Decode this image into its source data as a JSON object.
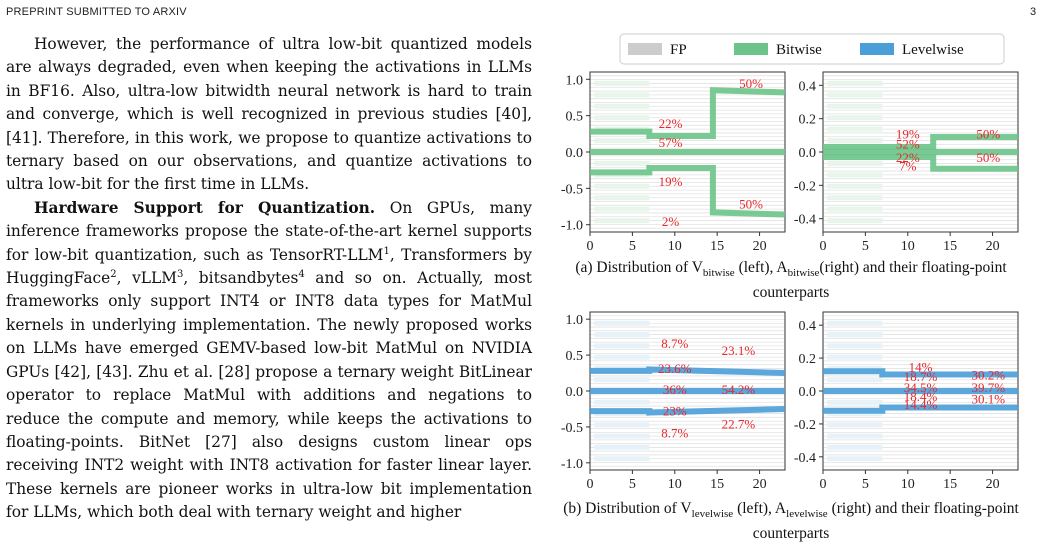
{
  "header": {
    "left": "PREPRINT SUBMITTED TO ARXIV",
    "page_number": "3"
  },
  "paragraph1": "However, the performance of ultra low-bit quantized models are always degraded, even when keeping the activations in LLMs in BF16. Also, ultra-low bitwidth neural network is hard to train and converge, which is well recognized in previous studies [40], [41]. Therefore, in this work, we propose to quantize activations to ternary based on our observations, and quantize activations to ultra low-bit for the first time in LLMs.",
  "paragraph2": {
    "heading": "Hardware Support for Quantization.",
    "t1": " On GPUs, many inference frameworks propose the state-of-the-art kernel supports for low-bit quantization, such as TensorRT-LLM",
    "f1": "1",
    "t2": ", Transformers by HuggingFace",
    "f2": "2",
    "t3": ", vLLM",
    "f3": "3",
    "t4": ", bitsandbytes",
    "f4": "4",
    "t5": " and so on. Actually, most frameworks only support INT4 or INT8 data types for MatMul kernels in underlying implementation. The newly proposed works on LLMs have emerged GEMV-based low-bit MatMul on NVIDIA GPUs [42], [43]. Zhu et al. [28] propose a ternary weight BitLinear operator to replace MatMul with additions and negations to reduce the compute and memory, while keeps the activations to floating-points. BitNet [27] also designs custom linear ops receiving INT2 weight with INT8 activation for faster linear layer. These kernels are pioneer works in ultra-low bit implementation for LLMs, which both deal with ternary weight and higher"
  },
  "legend": {
    "fp": "FP",
    "bitwise": "Bitwise",
    "levelwise": "Levelwise"
  },
  "colors": {
    "fp": "#cccccc",
    "bitwise": "#6cc48a",
    "levelwise": "#4a9fd8",
    "percent_label": "#e8282d"
  },
  "captions": {
    "a": {
      "pre": "(a) Distribution of V",
      "sub1": "bitwise",
      "mid1": " (left), A",
      "sub2": "bitwise",
      "post": "(right) and their floating-point counterparts"
    },
    "b": {
      "pre": "(b) Distribution of V",
      "sub1": "levelwise",
      "mid1": " (left), A",
      "sub2": "levelwise",
      "post": " (right) and their floating-point counterparts"
    }
  },
  "chart_data": [
    {
      "type": "line",
      "panel": "a-left",
      "xlim": [
        0,
        23
      ],
      "ylim": [
        -1.1,
        1.1
      ],
      "xticks": [
        "0",
        "5",
        "10",
        "15",
        "20"
      ],
      "yticks": [
        "1.0",
        "0.5",
        "0.0",
        "-0.5",
        "-1.0"
      ],
      "ytick_values": [
        1.0,
        0.5,
        0.0,
        -0.5,
        -1.0
      ],
      "series": [
        {
          "x": [
            0,
            7,
            7,
            14.5,
            14.5,
            23
          ],
          "y": [
            0.28,
            0.28,
            0.22,
            0.22,
            0.85,
            0.82
          ]
        },
        {
          "x": [
            0,
            23
          ],
          "y": [
            0.0,
            0.0
          ]
        },
        {
          "x": [
            0,
            7,
            7,
            14.5,
            14.5,
            23
          ],
          "y": [
            -0.28,
            -0.28,
            -0.22,
            -0.22,
            -0.83,
            -0.86
          ]
        }
      ],
      "annotations": [
        {
          "text": "22%",
          "x": 9.5,
          "y": 0.33
        },
        {
          "text": "50%",
          "x": 19,
          "y": 0.88
        },
        {
          "text": "57%",
          "x": 9.5,
          "y": 0.07
        },
        {
          "text": "19%",
          "x": 9.5,
          "y": -0.47
        },
        {
          "text": "50%",
          "x": 19,
          "y": -0.78
        },
        {
          "text": "2%",
          "x": 9.5,
          "y": -1.02
        }
      ]
    },
    {
      "type": "line",
      "panel": "a-right",
      "xlim": [
        0,
        23
      ],
      "ylim": [
        -0.48,
        0.48
      ],
      "xticks": [
        "0",
        "5",
        "10",
        "15",
        "20"
      ],
      "yticks": [
        "0.4",
        "0.2",
        "0.0",
        "-0.2",
        "-0.4"
      ],
      "ytick_values": [
        0.4,
        0.2,
        0.0,
        -0.2,
        -0.4
      ],
      "series": [
        {
          "x": [
            0,
            7,
            7,
            13,
            13,
            23
          ],
          "y": [
            0.03,
            0.03,
            0.03,
            0.03,
            0.09,
            0.09
          ]
        },
        {
          "x": [
            0,
            23
          ],
          "y": [
            0.0,
            0.0
          ]
        },
        {
          "x": [
            0,
            7,
            7,
            13,
            13,
            23
          ],
          "y": [
            -0.03,
            -0.03,
            -0.03,
            -0.03,
            -0.1,
            -0.1
          ]
        }
      ],
      "annotations": [
        {
          "text": "19%",
          "x": 10,
          "y": 0.08
        },
        {
          "text": "50%",
          "x": 19.5,
          "y": 0.08
        },
        {
          "text": "52%",
          "x": 10,
          "y": 0.02
        },
        {
          "text": "22%",
          "x": 10,
          "y": -0.06
        },
        {
          "text": "50%",
          "x": 19.5,
          "y": -0.06
        },
        {
          "text": "7%",
          "x": 10,
          "y": -0.11
        }
      ]
    },
    {
      "type": "line",
      "panel": "b-left",
      "xlim": [
        0,
        23
      ],
      "ylim": [
        -1.1,
        1.1
      ],
      "xticks": [
        "0",
        "5",
        "10",
        "15",
        "20"
      ],
      "yticks": [
        "1.0",
        "0.5",
        "0.0",
        "-0.5",
        "-1.0"
      ],
      "ytick_values": [
        1.0,
        0.5,
        0.0,
        -0.5,
        -1.0
      ],
      "series": [
        {
          "x": [
            0,
            7,
            7,
            23
          ],
          "y": [
            0.28,
            0.28,
            0.3,
            0.25
          ]
        },
        {
          "x": [
            0,
            23
          ],
          "y": [
            0.0,
            0.0
          ]
        },
        {
          "x": [
            0,
            7,
            7,
            23
          ],
          "y": [
            -0.28,
            -0.28,
            -0.3,
            -0.25
          ]
        }
      ],
      "annotations": [
        {
          "text": "8.7%",
          "x": 10,
          "y": 0.6
        },
        {
          "text": "23.1%",
          "x": 17.5,
          "y": 0.5
        },
        {
          "text": "23.6%",
          "x": 10,
          "y": 0.25
        },
        {
          "text": "36%",
          "x": 10,
          "y": -0.04
        },
        {
          "text": "54.2%",
          "x": 17.5,
          "y": -0.04
        },
        {
          "text": "23%",
          "x": 10,
          "y": -0.34
        },
        {
          "text": "22.7%",
          "x": 17.5,
          "y": -0.52
        },
        {
          "text": "8.7%",
          "x": 10,
          "y": -0.65
        }
      ]
    },
    {
      "type": "line",
      "panel": "b-right",
      "xlim": [
        0,
        23
      ],
      "ylim": [
        -0.48,
        0.48
      ],
      "xticks": [
        "0",
        "5",
        "10",
        "15",
        "20"
      ],
      "yticks": [
        "0.4",
        "0.2",
        "0.0",
        "-0.2",
        "-0.4"
      ],
      "ytick_values": [
        0.4,
        0.2,
        0.0,
        -0.2,
        -0.4
      ],
      "series": [
        {
          "x": [
            0,
            7,
            7,
            23
          ],
          "y": [
            0.12,
            0.12,
            0.1,
            0.1
          ]
        },
        {
          "x": [
            0,
            23
          ],
          "y": [
            0.0,
            0.0
          ]
        },
        {
          "x": [
            0,
            7,
            7,
            23
          ],
          "y": [
            -0.12,
            -0.12,
            -0.1,
            -0.1
          ]
        }
      ],
      "annotations": [
        {
          "text": "14%",
          "x": 11.5,
          "y": 0.12
        },
        {
          "text": "18.7%",
          "x": 11.5,
          "y": 0.06
        },
        {
          "text": "30.2%",
          "x": 19.5,
          "y": 0.07
        },
        {
          "text": "34.5%",
          "x": 11.5,
          "y": -0.005
        },
        {
          "text": "39.7%",
          "x": 19.5,
          "y": -0.005
        },
        {
          "text": "18.4%",
          "x": 11.5,
          "y": -0.06
        },
        {
          "text": "30.1%",
          "x": 19.5,
          "y": -0.075
        },
        {
          "text": "14.4%",
          "x": 11.5,
          "y": -0.11
        }
      ]
    }
  ]
}
